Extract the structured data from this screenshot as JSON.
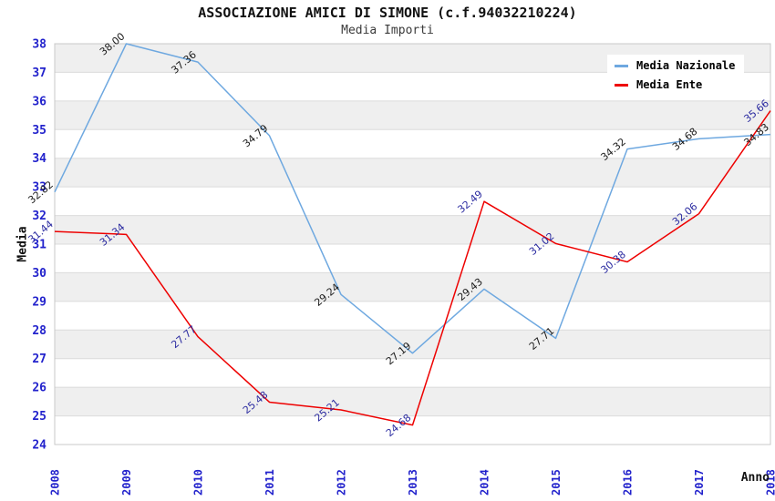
{
  "header": {
    "title": "ASSOCIAZIONE AMICI DI SIMONE (c.f.94032210224)",
    "subtitle": "Media Importi"
  },
  "legend": {
    "items": [
      {
        "label": "Media Nazionale",
        "color": "#6EA8E0"
      },
      {
        "label": "Media Ente",
        "color": "#EE0000"
      }
    ]
  },
  "axes": {
    "y_title": "Media",
    "x_title": "Anno"
  },
  "chart_data": {
    "type": "line",
    "title": "ASSOCIAZIONE AMICI DI SIMONE (c.f.94032210224)",
    "subtitle": "Media Importi",
    "xlabel": "Anno",
    "ylabel": "Media",
    "categories": [
      "2008",
      "2009",
      "2010",
      "2011",
      "2012",
      "2013",
      "2014",
      "2015",
      "2016",
      "2017",
      "2018"
    ],
    "series": [
      {
        "name": "Media Nazionale",
        "color": "#6EA8E0",
        "label_color": "#1A1A1A",
        "values": [
          32.82,
          38.0,
          37.36,
          34.79,
          29.24,
          27.19,
          29.43,
          27.71,
          34.32,
          34.68,
          34.83
        ]
      },
      {
        "name": "Media Ente",
        "color": "#EE0000",
        "label_color": "#2A2AA0",
        "values": [
          31.44,
          31.34,
          27.77,
          25.48,
          25.21,
          24.68,
          32.49,
          31.02,
          30.38,
          32.06,
          35.66
        ]
      }
    ],
    "ylim": [
      24,
      38
    ],
    "y_ticks": [
      24,
      25,
      26,
      27,
      28,
      29,
      30,
      31,
      32,
      33,
      34,
      35,
      36,
      37,
      38
    ],
    "grid": "horizontal-bands",
    "legend_position": "top-right",
    "band_colors": [
      "#EFEFEF",
      "#FFFFFF"
    ],
    "gridline_color": "#DBDBDB",
    "border_color": "#C8C8C8",
    "tick_color": "#2222CC",
    "label_rotation_deg": -40,
    "x_tick_rotation_deg": -90
  }
}
